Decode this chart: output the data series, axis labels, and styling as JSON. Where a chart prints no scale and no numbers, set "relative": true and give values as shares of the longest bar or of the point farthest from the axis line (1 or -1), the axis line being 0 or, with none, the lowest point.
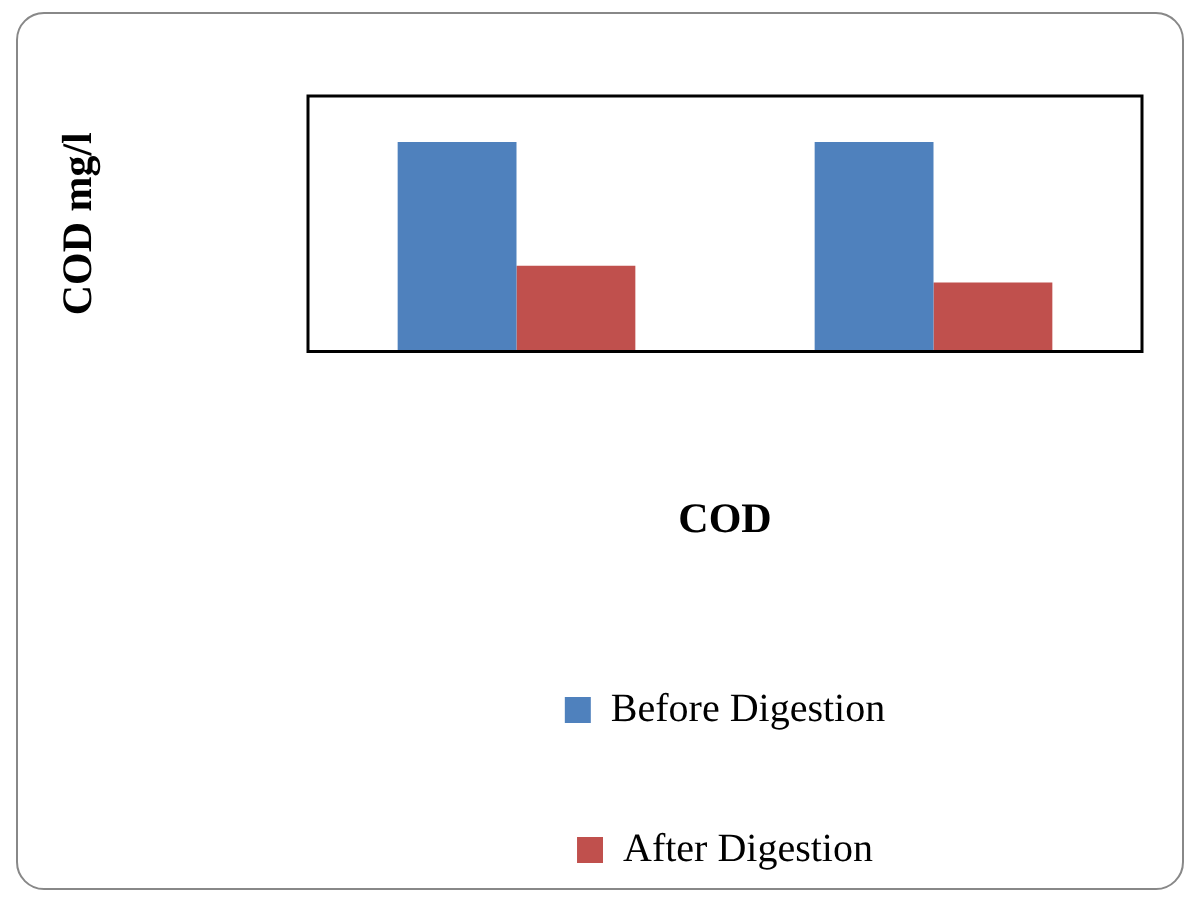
{
  "chart_data": {
    "type": "bar",
    "relative": true,
    "xlabel": "COD",
    "ylabel": "COD mg/l",
    "categories": [
      null,
      null
    ],
    "series": [
      {
        "name": "Before Digestion",
        "color": "#4f81bd",
        "values": [
          1,
          1
        ]
      },
      {
        "name": "After Digestion",
        "color": "#c0504d",
        "values": [
          0.41,
          0.33
        ]
      }
    ],
    "legend": "bottom",
    "grid": false
  }
}
